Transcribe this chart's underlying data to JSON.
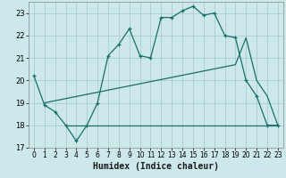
{
  "xlabel": "Humidex (Indice chaleur)",
  "bg_color": "#cce8ea",
  "grid_color": "#aacdd0",
  "line_color": "#1a6e6a",
  "line1_x": [
    0,
    1,
    2,
    3,
    4,
    5,
    6,
    7,
    8,
    9,
    10,
    11,
    12,
    13,
    14,
    15,
    16,
    17,
    18,
    19,
    20,
    21,
    22,
    23
  ],
  "line1_y": [
    20.2,
    18.9,
    18.6,
    18.0,
    17.3,
    18.0,
    19.0,
    21.1,
    21.6,
    22.3,
    21.1,
    21.0,
    22.8,
    22.8,
    23.1,
    23.3,
    22.9,
    23.0,
    22.0,
    21.9,
    20.0,
    19.3,
    18.0,
    18.0
  ],
  "line2_x": [
    1,
    19,
    20,
    21,
    22,
    23
  ],
  "line2_y": [
    19.0,
    20.7,
    21.9,
    20.0,
    19.3,
    18.0
  ],
  "line3_x": [
    3,
    23
  ],
  "line3_y": [
    18.0,
    18.0
  ],
  "ylim": [
    17.0,
    23.5
  ],
  "xlim": [
    -0.5,
    23.5
  ],
  "yticks": [
    17,
    18,
    19,
    20,
    21,
    22,
    23
  ],
  "xticks": [
    0,
    1,
    2,
    3,
    4,
    5,
    6,
    7,
    8,
    9,
    10,
    11,
    12,
    13,
    14,
    15,
    16,
    17,
    18,
    19,
    20,
    21,
    22,
    23
  ]
}
